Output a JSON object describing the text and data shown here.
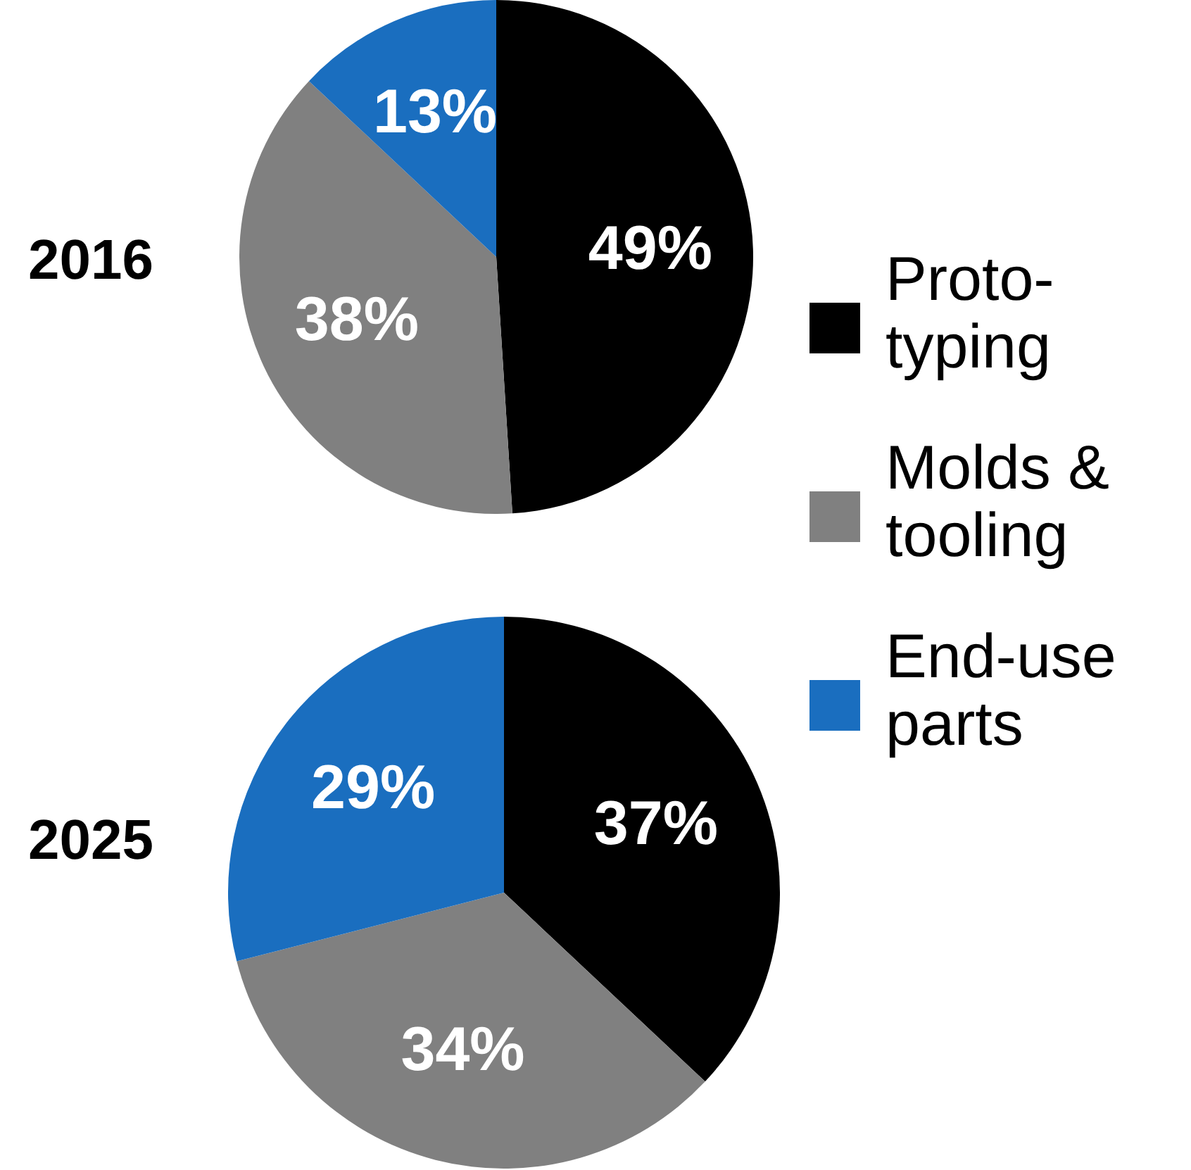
{
  "chart_data": [
    {
      "type": "pie",
      "title": "2016",
      "categories": [
        "Proto-typing",
        "Molds & tooling",
        "End-use parts"
      ],
      "values": [
        49,
        38,
        13
      ],
      "colors": [
        "#000000",
        "#808080",
        "#1a6ebf"
      ],
      "value_labels": [
        "49%",
        "38%",
        "13%"
      ],
      "legend": "right"
    },
    {
      "type": "pie",
      "title": "2025",
      "categories": [
        null,
        null,
        null
      ],
      "values": [
        37,
        34,
        29
      ],
      "colors": [
        "#000000",
        "#808080",
        "#1a6ebf"
      ],
      "value_labels": [
        "37%",
        "34%",
        "29%"
      ]
    }
  ]
}
